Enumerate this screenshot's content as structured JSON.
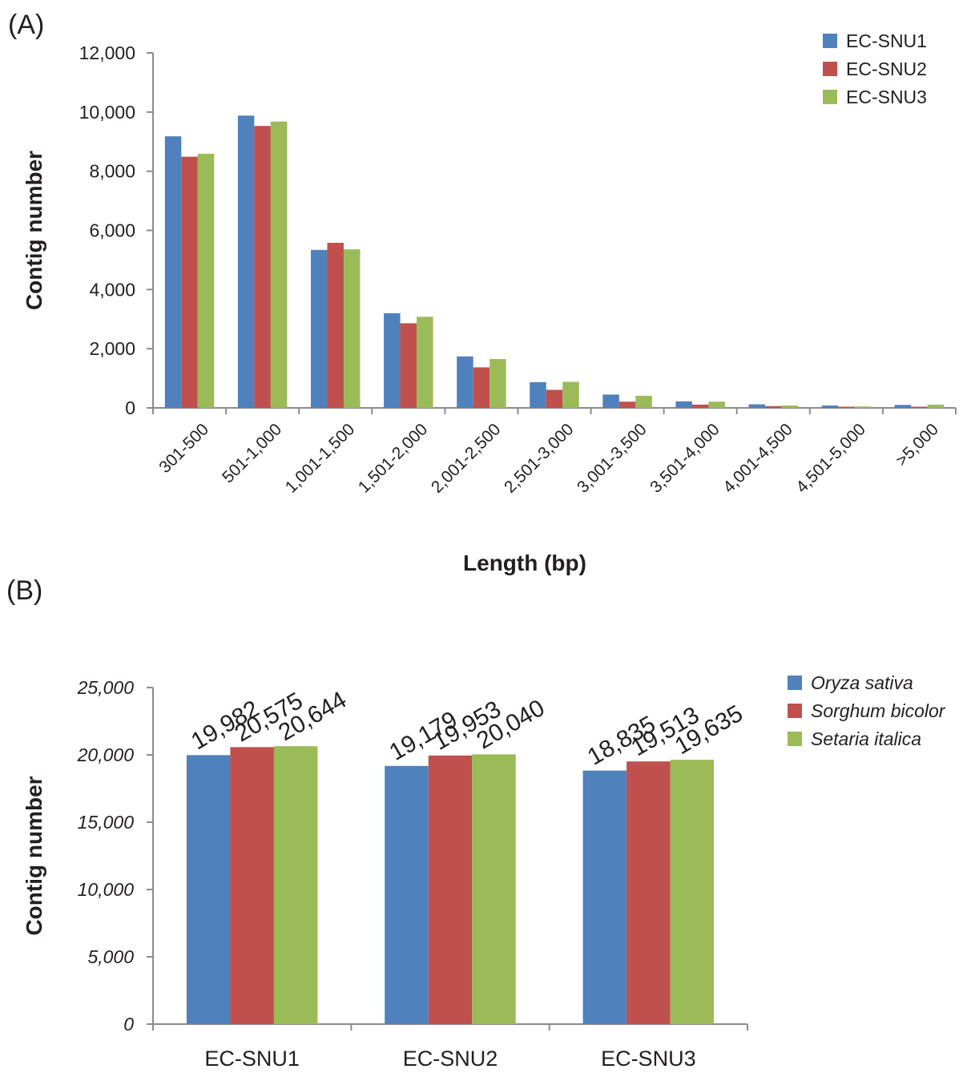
{
  "panel_a_label": "(A)",
  "panel_b_label": "(B)",
  "colors": {
    "series1": "#4f81bd",
    "series2": "#c0504d",
    "series3": "#9bbb59",
    "axis": "#8c8c8c",
    "text": "#231f20"
  },
  "chart_data": [
    {
      "type": "bar",
      "ylabel": "Contig number",
      "xlabel": "Length (bp)",
      "ylim": [
        0,
        12000
      ],
      "yticks": [
        "0",
        "2,000",
        "4,000",
        "6,000",
        "8,000",
        "10,000",
        "12,000"
      ],
      "ytick_values": [
        0,
        2000,
        4000,
        6000,
        8000,
        10000,
        12000
      ],
      "legend_position": "top-right",
      "categories": [
        "301-500",
        "501-1,000",
        "1,001-1,500",
        "1,501-2,000",
        "2,001-2,500",
        "2,501-3,000",
        "3,001-3,500",
        "3,501-4,000",
        "4,001-4,500",
        "4,501-5,000",
        ">5,000"
      ],
      "series": [
        {
          "name": "EC-SNU1",
          "values": [
            9180,
            9880,
            5340,
            3200,
            1740,
            870,
            450,
            220,
            120,
            80,
            100
          ]
        },
        {
          "name": "EC-SNU2",
          "values": [
            8490,
            9530,
            5580,
            2860,
            1370,
            610,
            210,
            110,
            60,
            40,
            40
          ]
        },
        {
          "name": "EC-SNU3",
          "values": [
            8590,
            9680,
            5360,
            3080,
            1650,
            880,
            410,
            210,
            80,
            50,
            110
          ]
        }
      ]
    },
    {
      "type": "bar",
      "ylabel": "Contig number",
      "ylim": [
        0,
        25000
      ],
      "yticks": [
        "0",
        "5,000",
        "10,000",
        "15,000",
        "20,000",
        "25,000"
      ],
      "ytick_values": [
        0,
        5000,
        10000,
        15000,
        20000,
        25000
      ],
      "legend_position": "right",
      "categories": [
        "EC-SNU1",
        "EC-SNU2",
        "EC-SNU3"
      ],
      "series": [
        {
          "name": "Oryza sativa",
          "values": [
            19982,
            19179,
            18835
          ],
          "labels": [
            "19,982",
            "19,179",
            "18,835"
          ]
        },
        {
          "name": "Sorghum bicolor",
          "values": [
            20575,
            19953,
            19513
          ],
          "labels": [
            "20,575",
            "19,953",
            "19,513"
          ]
        },
        {
          "name": "Setaria italica",
          "values": [
            20644,
            20040,
            19635
          ],
          "labels": [
            "20,644",
            "20,040",
            "19,635"
          ]
        }
      ]
    }
  ]
}
